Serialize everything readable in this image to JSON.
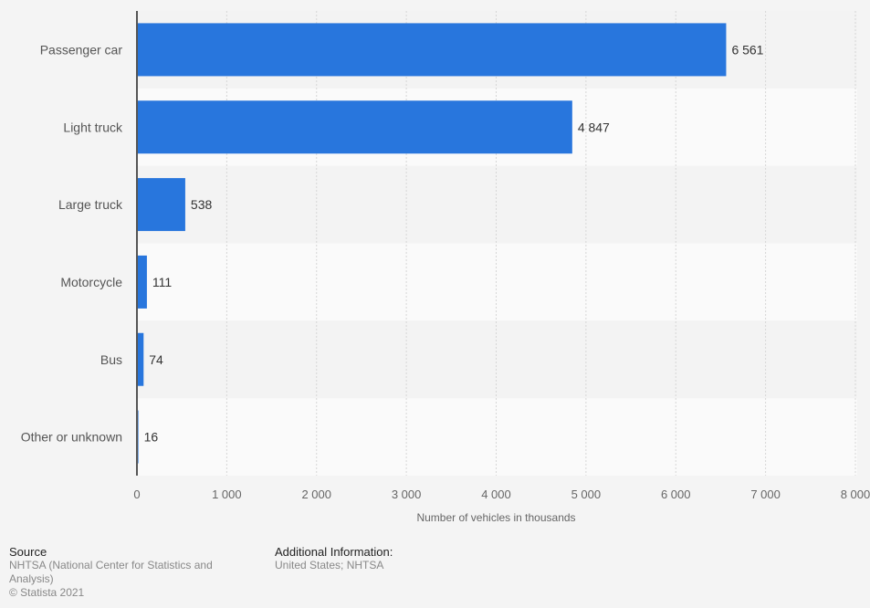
{
  "chart_data": {
    "type": "bar",
    "orientation": "horizontal",
    "categories": [
      "Passenger car",
      "Light truck",
      "Large truck",
      "Motorcycle",
      "Bus",
      "Other or unknown"
    ],
    "values": [
      6561,
      4847,
      538,
      111,
      74,
      16
    ],
    "data_labels": [
      "6 561",
      "4 847",
      "538",
      "111",
      "74",
      "16"
    ],
    "xlabel": "Number of vehicles in thousands",
    "ylabel": "",
    "xlim": [
      0,
      8000
    ],
    "xticks": [
      0,
      1000,
      2000,
      3000,
      4000,
      5000,
      6000,
      7000,
      8000
    ],
    "xtick_labels": [
      "0",
      "1 000",
      "2 000",
      "3 000",
      "4 000",
      "5 000",
      "6 000",
      "7 000",
      "8 000"
    ],
    "grid": "vertical dashed",
    "bar_color": "#2876dd"
  },
  "footer": {
    "source_heading": "Source",
    "source_lines": [
      "NHTSA (National Center for Statistics and",
      "Analysis)",
      "© Statista 2021"
    ],
    "info_heading": "Additional Information:",
    "info_text": "United States; NHTSA"
  }
}
